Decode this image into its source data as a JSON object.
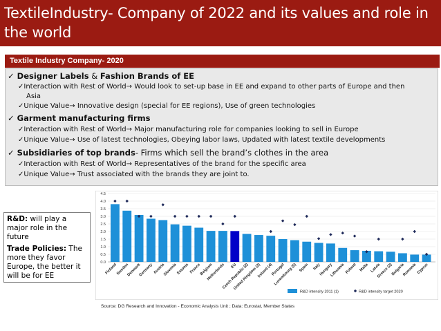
{
  "title": "TextileIndustry- Company of 2022 and its values and role in the world",
  "subtitle": "Textile Industry Company- 2020",
  "sections": [
    {
      "head_bold": "Designer Labels",
      "head_mid": " & ",
      "head_bold2": "Fashion Brands of EE",
      "lines": [
        "✓Interaction with Rest of World→ Would look to set-up base in EE and expand to other parts of Europe and then",
        "Asia",
        "✓Unique Value→  Innovative design (special for EE regions), Use of green technologies"
      ]
    },
    {
      "head_bold": "Garment manufacturing firms",
      "lines": [
        "✓Interaction with Rest of World→ Major manufacturing role for companies looking to sell in Europe",
        "✓Unique Value→ Use of latest technologies, Obeying labor laws, Updated with latest textile developments"
      ]
    },
    {
      "head_bold": "Subsidiaries of top brands",
      "head_rest": "- Firms which sell the brand’s clothes in the area",
      "lines": [
        "✓Interaction with Rest of World→ Representatives of the brand for the specific area",
        "✓Unique Value→ Trust associated with the brands they are joint to."
      ]
    }
  ],
  "side_note": {
    "p1_bold": "R&D:",
    "p1_text": " will play a major role in the future",
    "p2_bold": "Trade Policies:",
    "p2_text": " The more they favor Europe, the better it will be for EE"
  },
  "source": "Source: DG Research and Innovation - Economic Analysis Unit ; Data: Eurostat, Member States",
  "colors": {
    "title_bg": "#9b1b12",
    "bar": "#1e90d8",
    "bar_highlight": "#0000c8",
    "target": "#1f2a5a"
  },
  "chart_data": {
    "type": "bar",
    "title": "",
    "xlabel": "",
    "ylabel": "",
    "ylim": [
      0,
      4.5
    ],
    "yticks": [
      "0.0",
      "0.5",
      "1.0",
      "1.5",
      "2.0",
      "2.5",
      "3.0",
      "3.5",
      "4.0",
      "4.5"
    ],
    "categories": [
      "Finland",
      "Sweden",
      "Denmark",
      "Germany",
      "Austria",
      "Slovenia",
      "Estonia",
      "France",
      "Belgium",
      "Netherlands",
      "EU",
      "Czech Republic (2)",
      "United Kingdom (3)",
      "Ireland (4)",
      "Portugal",
      "Luxembourg (5)",
      "Spain",
      "Italy",
      "Hungary",
      "Lithuania",
      "Poland",
      "Malta",
      "Latvia",
      "Greece (3)",
      "Bulgaria",
      "Romania",
      "Cyprus"
    ],
    "highlight": "EU",
    "series": [
      {
        "name": "R&D intensity 2011 (1)",
        "values": [
          3.8,
          3.37,
          3.09,
          2.84,
          2.75,
          2.47,
          2.38,
          2.25,
          2.04,
          2.04,
          2.03,
          1.84,
          1.77,
          1.72,
          1.5,
          1.43,
          1.33,
          1.25,
          1.21,
          0.92,
          0.77,
          0.73,
          0.7,
          0.67,
          0.57,
          0.48,
          0.48
        ]
      },
      {
        "name": "R&D intensity target 2020",
        "values": [
          4.0,
          4.0,
          3.0,
          3.0,
          3.76,
          3.0,
          3.0,
          3.0,
          3.0,
          2.5,
          3.0,
          null,
          null,
          2.0,
          2.7,
          2.45,
          3.0,
          1.53,
          1.8,
          1.9,
          1.7,
          0.67,
          1.5,
          null,
          1.5,
          2.0,
          0.5
        ]
      }
    ],
    "legend": [
      "R&D intensity 2011 (1)",
      "R&D intensity target 2020"
    ]
  }
}
